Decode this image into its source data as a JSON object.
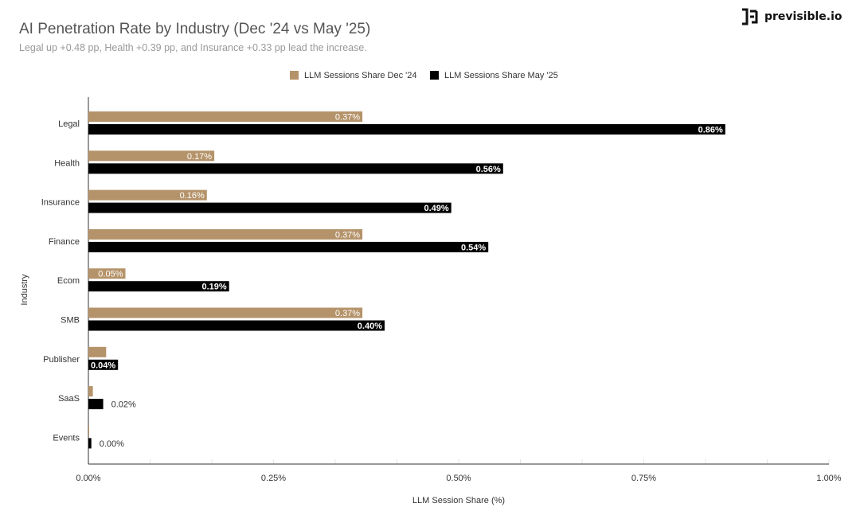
{
  "logo": {
    "text": "previsible.io"
  },
  "chart_data": {
    "type": "bar",
    "orientation": "horizontal",
    "title": "AI Penetration Rate by Industry (Dec '24 vs May '25)",
    "subtitle": "Legal up +0.48 pp, Health +0.39 pp, and Insurance +0.33 pp lead the increase.",
    "xlabel": "LLM Session Share (%)",
    "ylabel": "Industry",
    "xlim": [
      0,
      1.0
    ],
    "xticks": [
      "0.00%",
      "0.25%",
      "0.50%",
      "0.75%",
      "1.00%"
    ],
    "legend_position": "top-center",
    "categories": [
      "Legal",
      "Health",
      "Insurance",
      "Finance",
      "Ecom",
      "SMB",
      "Publisher",
      "SaaS",
      "Events"
    ],
    "series": [
      {
        "name": "LLM Sessions Share Dec '24",
        "color": "#b5936a",
        "values": [
          0.37,
          0.17,
          0.16,
          0.37,
          0.05,
          0.37,
          0.024,
          0.006,
          0.001
        ],
        "labels": [
          "0.37%",
          "0.17%",
          "0.16%",
          "0.37%",
          "0.05%",
          "0.37%",
          "",
          "",
          ""
        ]
      },
      {
        "name": "LLM Sessions Share May '25",
        "color": "#000000",
        "values": [
          0.86,
          0.56,
          0.49,
          0.54,
          0.19,
          0.4,
          0.04,
          0.02,
          0.004
        ],
        "labels": [
          "0.86%",
          "0.56%",
          "0.49%",
          "0.54%",
          "0.19%",
          "0.40%",
          "0.04%",
          "0.02%",
          "0.00%"
        ]
      }
    ]
  }
}
